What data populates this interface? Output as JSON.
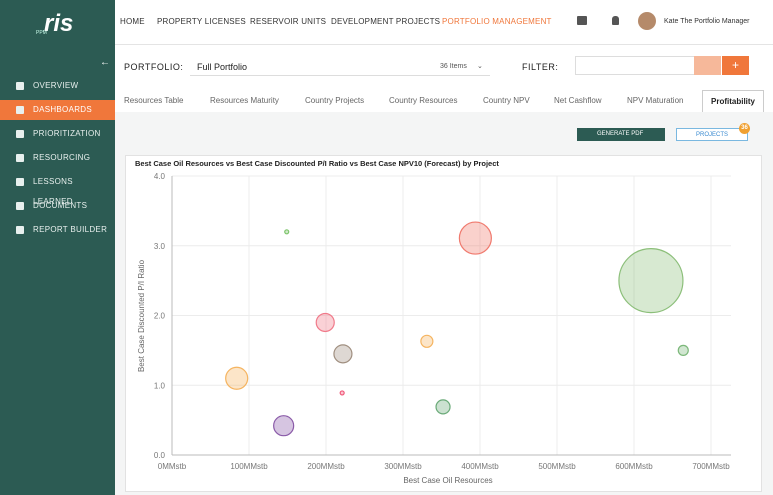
{
  "logo": {
    "text": "ris",
    "sub": "PPM"
  },
  "nav": {
    "items": [
      "HOME",
      "PROPERTY LICENSES",
      "RESERVOIR UNITS",
      "DEVELOPMENT PROJECTS",
      "PORTFOLIO MANAGEMENT"
    ],
    "active": 4,
    "user": "Kate The Portfolio Manager"
  },
  "sidebar": {
    "items": [
      "OVERVIEW",
      "DASHBOARDS",
      "PRIORITIZATION",
      "RESOURCING",
      "LESSONS LEARNED",
      "DOCUMENTS",
      "REPORT BUILDER"
    ],
    "active": 1
  },
  "toolbar": {
    "portfolio_label": "PORTFOLIO:",
    "portfolio_value": "Full Portfolio",
    "items_count": "36 Items",
    "filter_label": "FILTER:"
  },
  "tabs": {
    "items": [
      "Resources Table",
      "Resources Maturity",
      "Country Projects",
      "Country Resources",
      "Country NPV",
      "Net Cashflow",
      "NPV Maturation",
      "Profitability"
    ],
    "active": 7
  },
  "buttons": {
    "generate_pdf": "GENERATE PDF",
    "projects": "PROJECTS",
    "projects_badge": "36"
  },
  "chart_data": {
    "type": "scatter",
    "title": "Best Case Oil Resources vs Best Case Discounted P/I Ratio vs Best Case NPV10 (Forecast) by Project",
    "x_label": "Best Case Oil Resources",
    "y_label": "Best Case Discounted P/I Ratio",
    "x": [
      149,
      394,
      622,
      199,
      222,
      331,
      664,
      84,
      221,
      352,
      145
    ],
    "values": [
      3.2,
      3.11,
      2.5,
      1.9,
      1.45,
      1.63,
      1.5,
      1.1,
      0.89,
      0.69,
      0.42
    ],
    "sizes": [
      4,
      256,
      1024,
      81,
      81,
      36,
      25,
      121,
      4,
      49,
      100
    ],
    "colors": [
      "#7cc46a",
      "#f07a6e",
      "#8cbf7a",
      "#f07a8a",
      "#a08f80",
      "#f5b460",
      "#7cb87a",
      "#f5b460",
      "#f05a7a",
      "#6aaa78",
      "#8a5aa8"
    ],
    "xlim": [
      0,
      700
    ],
    "ylim": [
      0,
      4
    ],
    "xticks": [
      {
        "value": 0,
        "label": "0MMstb"
      },
      {
        "value": 100,
        "label": "100MMstb"
      },
      {
        "value": 200,
        "label": "200MMstb"
      },
      {
        "value": 300,
        "label": "300MMstb"
      },
      {
        "value": 400,
        "label": "400MMstb"
      },
      {
        "value": 500,
        "label": "500MMstb"
      },
      {
        "value": 600,
        "label": "600MMstb"
      },
      {
        "value": 700,
        "label": "700MMstb"
      }
    ],
    "yticks": [
      {
        "value": 0,
        "label": "0.0"
      },
      {
        "value": 1,
        "label": "1.0"
      },
      {
        "value": 2,
        "label": "2.0"
      },
      {
        "value": 3,
        "label": "3.0"
      },
      {
        "value": 4,
        "label": "4.0"
      }
    ],
    "grid": true
  }
}
